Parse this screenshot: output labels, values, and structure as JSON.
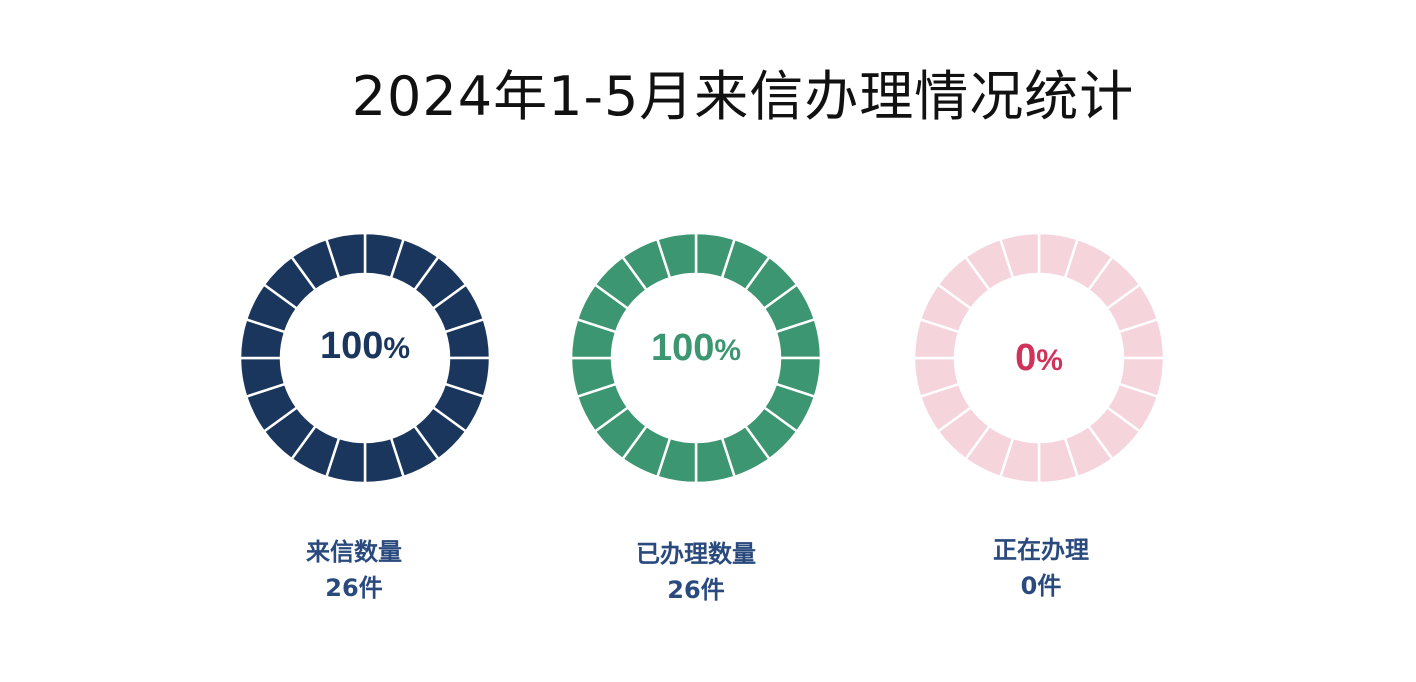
{
  "title": "2024年1-5月来信办理情况统计",
  "chart_data": [
    {
      "type": "pie",
      "segments": 20,
      "percent": 100,
      "percent_text": "100",
      "percent_sign": "%",
      "label": "来信数量",
      "count_text": "26件",
      "count": 26,
      "fill_color": "#1b365d",
      "empty_color": "#f5d4dc",
      "text_color": "#1b365d"
    },
    {
      "type": "pie",
      "segments": 20,
      "percent": 100,
      "percent_text": "100",
      "percent_sign": "%",
      "label": "已办理数量",
      "count_text": "26件",
      "count": 26,
      "fill_color": "#3c9671",
      "empty_color": "#f5d4dc",
      "text_color": "#3c9671"
    },
    {
      "type": "pie",
      "segments": 20,
      "percent": 0,
      "percent_text": "0",
      "percent_sign": "%",
      "label": "正在办理",
      "count_text": "0件",
      "count": 0,
      "fill_color": "#d0325a",
      "empty_color": "#f5d4dc",
      "text_color": "#d0325a"
    }
  ]
}
